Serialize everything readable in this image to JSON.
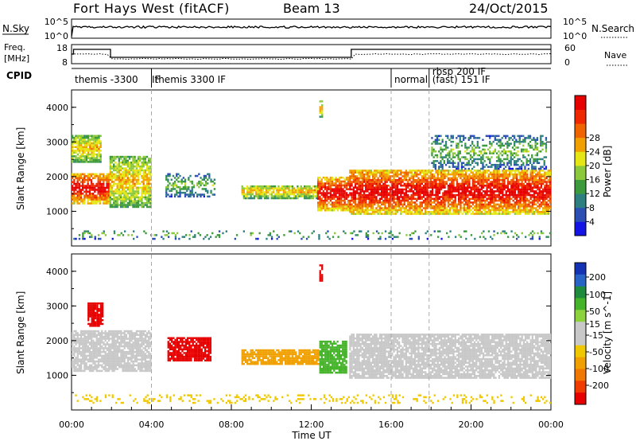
{
  "header": {
    "station": "Fort Hays West (fitACF)",
    "beam": "Beam 13",
    "date": "24/Oct/2015"
  },
  "noise_panel": {
    "left_label": "N.Sky",
    "right_label": "N.Search",
    "left_ticks": [
      "10^5",
      "10^0"
    ],
    "right_ticks": [
      "10^5",
      "10^0"
    ]
  },
  "freq_panel": {
    "left_label_1": "Freq.",
    "left_label_2": "[MHz]",
    "right_label": "Nave",
    "left_ticks": [
      "18",
      "8"
    ],
    "right_ticks": [
      "60",
      "0"
    ]
  },
  "cpid": {
    "label": "CPID",
    "segments": [
      {
        "start_h": 0.0,
        "end_h": 4.0,
        "line1": "themis -3300",
        "line2": ""
      },
      {
        "start_h": 4.0,
        "end_h": 16.0,
        "line1": "themis 3300 IF",
        "line2": ""
      },
      {
        "start_h": 16.0,
        "end_h": 17.9,
        "line1": "normal",
        "line2": ""
      },
      {
        "start_h": 17.9,
        "end_h": 24.0,
        "line1": "rbsp 200 IF",
        "line2": "(fast) 151 IF"
      }
    ],
    "stray_label": "IF"
  },
  "axes": {
    "ylabel": "Slant Range [km]",
    "xlabel": "Time UT",
    "x_ticks": [
      "00:00",
      "04:00",
      "08:00",
      "12:00",
      "16:00",
      "20:00",
      "00:00"
    ],
    "y_ticks": [
      "1000",
      "2000",
      "3000",
      "4000"
    ]
  },
  "colorbars": {
    "power": {
      "label": "Power [dB]",
      "ticks": [
        "4",
        "8",
        "12",
        "16",
        "20",
        "24",
        "28"
      ],
      "colors": [
        "#1414e6",
        "#2c4fb6",
        "#2e8080",
        "#3c9a3c",
        "#8cc83c",
        "#e6e614",
        "#f0a000",
        "#f06400",
        "#f02800",
        "#e60000"
      ]
    },
    "velocity": {
      "label": "Velocity [m s^-1]",
      "ticks": [
        "200",
        "100",
        "50",
        "15",
        "-15",
        "-50",
        "-100",
        "-200"
      ],
      "colors": [
        "#1432b4",
        "#2864c8",
        "#1e8c3c",
        "#46b42a",
        "#8cd23c",
        "#c8c8c8",
        "#c8c8c8",
        "#f0c800",
        "#f0a000",
        "#f07800",
        "#f03c00",
        "#e60000"
      ]
    }
  },
  "chart_data": [
    {
      "type": "heatmap",
      "title": "Power",
      "x_range_h": [
        0,
        24
      ],
      "ylim": [
        0,
        4500
      ],
      "features": [
        {
          "t0": 0.0,
          "t1": 1.9,
          "r0": 1200,
          "r1": 2100,
          "level": "high"
        },
        {
          "t0": 1.9,
          "t1": 4.0,
          "r0": 1100,
          "r1": 2600,
          "level": "mid"
        },
        {
          "t0": 0.0,
          "t1": 1.5,
          "r0": 2400,
          "r1": 3200,
          "level": "mid"
        },
        {
          "t0": 4.7,
          "t1": 7.2,
          "r0": 1400,
          "r1": 2100,
          "level": "low"
        },
        {
          "t0": 8.5,
          "t1": 12.4,
          "r0": 1350,
          "r1": 1750,
          "level": "mid"
        },
        {
          "t0": 12.3,
          "t1": 13.9,
          "r0": 1000,
          "r1": 2000,
          "level": "high"
        },
        {
          "t0": 12.4,
          "t1": 12.6,
          "r0": 3700,
          "r1": 4200,
          "level": "mid"
        },
        {
          "t0": 13.9,
          "t1": 24.0,
          "r0": 900,
          "r1": 2200,
          "level": "high"
        },
        {
          "t0": 18.0,
          "t1": 23.8,
          "r0": 2200,
          "r1": 3200,
          "level": "low"
        },
        {
          "t0": 0.0,
          "t1": 24.0,
          "r0": 180,
          "r1": 450,
          "level": "low"
        }
      ]
    },
    {
      "type": "heatmap",
      "title": "Velocity",
      "x_range_h": [
        0,
        24
      ],
      "ylim": [
        0,
        4500
      ],
      "features": [
        {
          "t0": 0.0,
          "t1": 4.0,
          "r0": 1100,
          "r1": 2300,
          "velocity": 0
        },
        {
          "t0": 0.8,
          "t1": 1.6,
          "r0": 2400,
          "r1": 3100,
          "velocity": -200
        },
        {
          "t0": 4.8,
          "t1": 7.0,
          "r0": 1400,
          "r1": 2100,
          "velocity": -200
        },
        {
          "t0": 8.5,
          "t1": 12.4,
          "r0": 1300,
          "r1": 1750,
          "velocity": -60
        },
        {
          "t0": 12.4,
          "t1": 13.8,
          "r0": 1050,
          "r1": 2000,
          "velocity": 60
        },
        {
          "t0": 12.4,
          "t1": 12.6,
          "r0": 3700,
          "r1": 4200,
          "velocity": -200
        },
        {
          "t0": 13.9,
          "t1": 24.0,
          "r0": 900,
          "r1": 2200,
          "velocity": 0
        },
        {
          "t0": 0.0,
          "t1": 24.0,
          "r0": 180,
          "r1": 450,
          "velocity": -30
        }
      ]
    }
  ]
}
